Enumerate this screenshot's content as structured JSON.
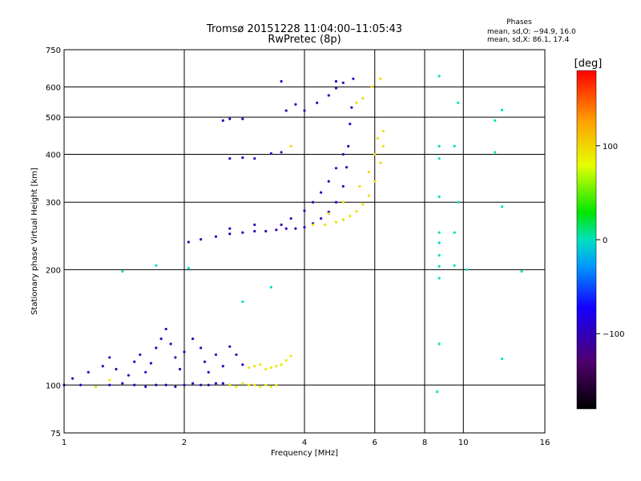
{
  "chart_data": {
    "type": "scatter",
    "title": "Tromsø 20151228 11:04:00–11:05:43",
    "subtitle": "RwPretec (8p)",
    "stats": {
      "heading": "Phases",
      "o_line": "mean, sd,O: −94.9, 16.0",
      "x_line": "mean, sd,X:  86.1, 17.4"
    },
    "xlabel": "Frequency [MHz]",
    "ylabel": "Stationary phase Virtual Height [km]",
    "x_scale": "log",
    "y_scale": "log",
    "xlim": [
      1,
      16
    ],
    "ylim": [
      75,
      750
    ],
    "x_ticks": [
      1,
      2,
      4,
      6,
      8,
      10,
      16
    ],
    "x_tick_labels": [
      "1",
      "2",
      "4",
      "6",
      "8",
      "10",
      "16"
    ],
    "y_ticks": [
      75,
      100,
      200,
      300,
      400,
      500,
      600,
      750
    ],
    "y_tick_labels": [
      "75",
      "100",
      "200",
      "300",
      "400",
      "500",
      "600",
      "750"
    ],
    "grid": true,
    "colorbar": {
      "label": "[deg]",
      "range": [
        -180,
        180
      ],
      "ticks": [
        -100,
        0,
        100
      ],
      "tick_labels": [
        "−100",
        "0",
        "100"
      ],
      "colormap": "rainbow (black → purple → blue → cyan → green → yellow → orange → red)"
    },
    "series": [
      {
        "layer": "E",
        "color_deg": -100,
        "points": [
          [
            1.0,
            100
          ],
          [
            1.1,
            100
          ],
          [
            1.2,
            99
          ],
          [
            1.3,
            100
          ],
          [
            1.4,
            101
          ],
          [
            1.5,
            100
          ],
          [
            1.6,
            99
          ],
          [
            1.7,
            100
          ],
          [
            1.8,
            100
          ],
          [
            1.9,
            99
          ],
          [
            2.0,
            100
          ],
          [
            2.1,
            101
          ],
          [
            2.2,
            100
          ],
          [
            2.3,
            100
          ],
          [
            2.4,
            101
          ],
          [
            2.5,
            101
          ],
          [
            2.6,
            100
          ],
          [
            1.05,
            104
          ],
          [
            1.15,
            108
          ],
          [
            1.25,
            112
          ],
          [
            1.3,
            118
          ],
          [
            1.35,
            110
          ],
          [
            1.45,
            106
          ],
          [
            1.5,
            115
          ],
          [
            1.55,
            120
          ],
          [
            1.6,
            108
          ],
          [
            1.65,
            114
          ],
          [
            1.7,
            125
          ],
          [
            1.75,
            132
          ],
          [
            1.8,
            140
          ],
          [
            1.85,
            128
          ],
          [
            1.9,
            118
          ],
          [
            1.95,
            110
          ],
          [
            2.0,
            122
          ],
          [
            2.1,
            132
          ],
          [
            2.2,
            125
          ],
          [
            2.25,
            115
          ],
          [
            2.3,
            108
          ],
          [
            2.4,
            120
          ],
          [
            2.5,
            112
          ],
          [
            2.6,
            126
          ],
          [
            2.7,
            120
          ],
          [
            2.8,
            113
          ]
        ]
      },
      {
        "layer": "E-X",
        "color_deg": 90,
        "points": [
          [
            2.6,
            100
          ],
          [
            2.7,
            99
          ],
          [
            2.8,
            101
          ],
          [
            2.9,
            100
          ],
          [
            3.0,
            100
          ],
          [
            3.1,
            99
          ],
          [
            3.2,
            100
          ],
          [
            3.3,
            99
          ],
          [
            3.4,
            100
          ],
          [
            2.9,
            111
          ],
          [
            3.0,
            112
          ],
          [
            3.1,
            113
          ],
          [
            3.2,
            110
          ],
          [
            3.3,
            111
          ],
          [
            3.4,
            112
          ],
          [
            3.5,
            113
          ],
          [
            3.6,
            116
          ],
          [
            3.7,
            119
          ],
          [
            1.2,
            99
          ],
          [
            1.3,
            103
          ]
        ]
      },
      {
        "layer": "F-O",
        "color_deg": -100,
        "points": [
          [
            2.05,
            236
          ],
          [
            2.2,
            240
          ],
          [
            2.4,
            244
          ],
          [
            2.6,
            248
          ],
          [
            2.8,
            250
          ],
          [
            3.0,
            252
          ],
          [
            3.2,
            252
          ],
          [
            3.4,
            254
          ],
          [
            3.6,
            256
          ],
          [
            3.8,
            256
          ],
          [
            4.0,
            258
          ],
          [
            4.2,
            264
          ],
          [
            4.4,
            272
          ],
          [
            4.6,
            283
          ],
          [
            4.8,
            300
          ],
          [
            5.0,
            330
          ],
          [
            5.1,
            370
          ],
          [
            5.15,
            420
          ],
          [
            5.2,
            480
          ],
          [
            5.25,
            530
          ],
          [
            2.6,
            256
          ],
          [
            3.0,
            262
          ],
          [
            3.5,
            262
          ],
          [
            3.7,
            272
          ],
          [
            4.0,
            285
          ],
          [
            4.2,
            300
          ],
          [
            4.4,
            318
          ],
          [
            4.6,
            340
          ],
          [
            4.8,
            368
          ],
          [
            5.0,
            400
          ],
          [
            4.0,
            520
          ],
          [
            4.3,
            545
          ],
          [
            4.6,
            570
          ],
          [
            4.8,
            595
          ],
          [
            5.0,
            615
          ],
          [
            5.3,
            630
          ],
          [
            3.6,
            520
          ],
          [
            3.8,
            540
          ],
          [
            2.5,
            490
          ],
          [
            2.6,
            495
          ],
          [
            2.8,
            495
          ],
          [
            2.6,
            390
          ],
          [
            2.8,
            392
          ],
          [
            3.0,
            390
          ],
          [
            3.3,
            402
          ],
          [
            3.5,
            405
          ],
          [
            3.5,
            620
          ],
          [
            4.8,
            620
          ]
        ]
      },
      {
        "layer": "F-X",
        "color_deg": 95,
        "points": [
          [
            4.2,
            262
          ],
          [
            4.5,
            262
          ],
          [
            4.8,
            266
          ],
          [
            5.0,
            270
          ],
          [
            5.2,
            276
          ],
          [
            5.4,
            284
          ],
          [
            5.6,
            296
          ],
          [
            5.8,
            312
          ],
          [
            6.0,
            340
          ],
          [
            6.2,
            380
          ],
          [
            6.3,
            420
          ],
          [
            6.3,
            460
          ],
          [
            5.5,
            330
          ],
          [
            5.8,
            360
          ],
          [
            6.0,
            400
          ],
          [
            6.1,
            440
          ],
          [
            4.6,
            280
          ],
          [
            5.0,
            300
          ],
          [
            5.6,
            560
          ],
          [
            5.9,
            600
          ],
          [
            6.2,
            630
          ],
          [
            5.4,
            545
          ],
          [
            3.7,
            420
          ]
        ]
      },
      {
        "layer": "scatter-high",
        "color_deg": 0,
        "points": [
          [
            8.7,
            640
          ],
          [
            8.7,
            420
          ],
          [
            8.7,
            390
          ],
          [
            8.7,
            310
          ],
          [
            8.7,
            250
          ],
          [
            8.7,
            235
          ],
          [
            8.7,
            218
          ],
          [
            8.7,
            204
          ],
          [
            8.7,
            190
          ],
          [
            8.7,
            128
          ],
          [
            8.6,
            96
          ],
          [
            9.5,
            420
          ],
          [
            9.5,
            250
          ],
          [
            9.5,
            205
          ],
          [
            9.7,
            545
          ],
          [
            9.7,
            300
          ],
          [
            10.2,
            200
          ],
          [
            12.0,
            490
          ],
          [
            12.0,
            405
          ],
          [
            12.5,
            522
          ],
          [
            12.5,
            292
          ],
          [
            12.5,
            117
          ],
          [
            14.0,
            198
          ],
          [
            1.4,
            198
          ],
          [
            1.7,
            205
          ],
          [
            2.05,
            202
          ],
          [
            2.8,
            165
          ],
          [
            3.3,
            180
          ]
        ]
      }
    ]
  }
}
